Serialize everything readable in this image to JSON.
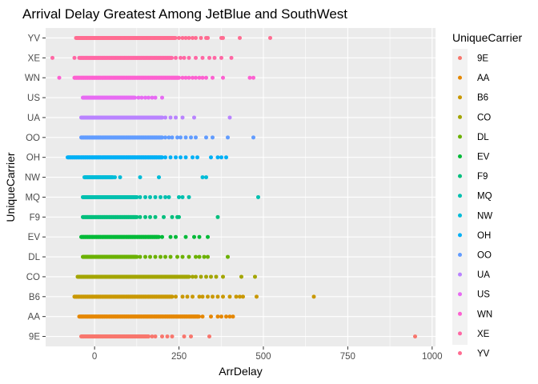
{
  "chart_data": {
    "type": "scatter",
    "title": "Arrival Delay Greatest Among JetBlue and SouthWest",
    "xlabel": "ArrDelay",
    "ylabel": "UniqueCarrier",
    "xlim": [
      -145,
      1010
    ],
    "xticks": [
      0,
      250,
      500,
      750,
      1000
    ],
    "xtick_labels": [
      "0",
      "250",
      "500",
      "750",
      "1000"
    ],
    "categories": [
      "9E",
      "AA",
      "B6",
      "CO",
      "DL",
      "EV",
      "F9",
      "MQ",
      "NW",
      "OH",
      "OO",
      "UA",
      "US",
      "WN",
      "XE",
      "YV"
    ],
    "grid": true,
    "legend": {
      "title": "UniqueCarrier",
      "position": "right"
    },
    "series": [
      {
        "name": "9E",
        "color": "#F8766D",
        "dense": [
          -40,
          160
        ],
        "points": [
          -35,
          170,
          180,
          200,
          215,
          230,
          265,
          285,
          340,
          950
        ]
      },
      {
        "name": "AA",
        "color": "#E58700",
        "dense": [
          -45,
          310
        ],
        "points": [
          320,
          345,
          365,
          375,
          390,
          400,
          410
        ]
      },
      {
        "name": "B6",
        "color": "#C99800",
        "dense": [
          -60,
          230
        ],
        "points": [
          240,
          260,
          275,
          290,
          310,
          320,
          335,
          350,
          365,
          380,
          400,
          420,
          430,
          440,
          480,
          650
        ]
      },
      {
        "name": "CO",
        "color": "#A3A500",
        "dense": [
          -50,
          280
        ],
        "points": [
          290,
          300,
          315,
          330,
          345,
          360,
          380,
          435,
          475
        ]
      },
      {
        "name": "DL",
        "color": "#6BB100",
        "dense": [
          -35,
          125
        ],
        "points": [
          135,
          150,
          165,
          180,
          195,
          210,
          225,
          245,
          260,
          280,
          300,
          310,
          325,
          335,
          395
        ]
      },
      {
        "name": "EV",
        "color": "#00BA38",
        "dense": [
          -40,
          190
        ],
        "points": [
          200,
          225,
          240,
          270,
          295,
          310,
          335
        ]
      },
      {
        "name": "F9",
        "color": "#00BF7D",
        "dense": [
          -35,
          125
        ],
        "points": [
          135,
          150,
          165,
          180,
          205,
          230,
          245,
          250,
          365
        ]
      },
      {
        "name": "MQ",
        "color": "#00C0AF",
        "dense": [
          -35,
          125
        ],
        "points": [
          135,
          150,
          165,
          180,
          195,
          210,
          220,
          250,
          260,
          280,
          485
        ]
      },
      {
        "name": "NW",
        "color": "#00BCD8",
        "dense": [
          -30,
          55
        ],
        "points": [
          60,
          75,
          135,
          190,
          320,
          330
        ]
      },
      {
        "name": "OH",
        "color": "#00B0F6",
        "dense": [
          -80,
          200
        ],
        "points": [
          210,
          225,
          240,
          255,
          270,
          290,
          305,
          345,
          365,
          375,
          390
        ]
      },
      {
        "name": "OO",
        "color": "#619CFF",
        "dense": [
          -40,
          200
        ],
        "points": [
          210,
          220,
          230,
          245,
          255,
          270,
          285,
          300,
          330,
          350,
          395,
          470
        ]
      },
      {
        "name": "UA",
        "color": "#B983FF",
        "dense": [
          -40,
          200
        ],
        "points": [
          210,
          225,
          240,
          260,
          295,
          400
        ]
      },
      {
        "name": "US",
        "color": "#E76BF3",
        "dense": [
          -35,
          120
        ],
        "points": [
          130,
          140,
          150,
          160,
          170,
          180,
          200
        ]
      },
      {
        "name": "WN",
        "color": "#FD61D1",
        "dense": [
          -60,
          250
        ],
        "points": [
          -105,
          260,
          270,
          280,
          290,
          300,
          310,
          320,
          330,
          350,
          380,
          460,
          470
        ]
      },
      {
        "name": "XE",
        "color": "#FF67A4",
        "dense": [
          -45,
          230
        ],
        "points": [
          -125,
          -60,
          240,
          255,
          265,
          280,
          300,
          320,
          340,
          355,
          375,
          405
        ]
      },
      {
        "name": "YV",
        "color": "#FF6C91",
        "dense": [
          -55,
          240
        ],
        "points": [
          250,
          260,
          270,
          280,
          290,
          300,
          315,
          330,
          335,
          375,
          380,
          430,
          520
        ]
      }
    ]
  }
}
